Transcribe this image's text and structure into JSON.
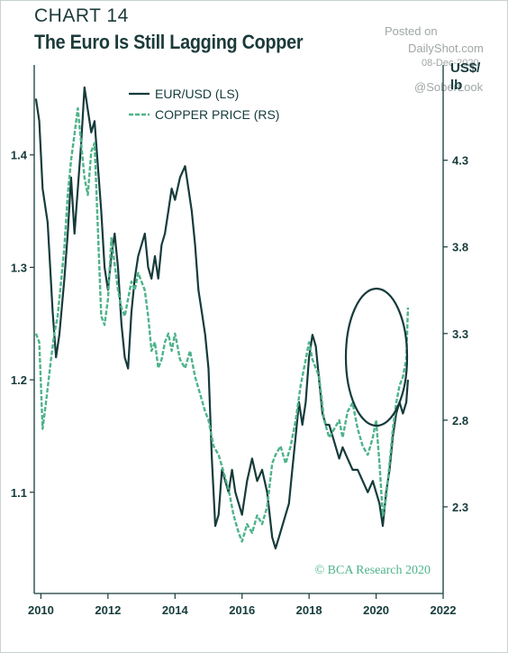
{
  "header": {
    "chart_number": "CHART 14",
    "title": "The Euro Is Still Lagging Copper"
  },
  "watermark": {
    "posted_on": "Posted on",
    "site": "DailyShot.com",
    "date": "08-Dec-2020",
    "handle": "@SoberLook"
  },
  "colors": {
    "eurusd": "#163b3b",
    "copper": "#4db38a",
    "axis": "#163b3b",
    "annotation": "#163b3b"
  },
  "chart_data": {
    "type": "line",
    "title": "The Euro Is Still Lagging Copper",
    "source": "© BCA Research 2020",
    "x_axis": {
      "ticks": [
        "2010",
        "2012",
        "2014",
        "2016",
        "2018",
        "2020",
        "2022"
      ],
      "range": [
        2009.8,
        2022
      ]
    },
    "left_axis": {
      "label": "",
      "ticks": [
        "1.1",
        "1.2",
        "1.3",
        "1.4"
      ],
      "range": [
        1.01,
        1.48
      ]
    },
    "right_axis": {
      "label": "US$/ lb",
      "ticks": [
        "2.3",
        "2.8",
        "3.3",
        "3.8",
        "4.3"
      ],
      "range": [
        1.8,
        4.85
      ]
    },
    "legend": {
      "placement": "top-left",
      "entries": [
        "EUR/USD (LS)",
        "COPPER PRICE (RS)"
      ]
    },
    "annotation": "ellipse around late 2020 values",
    "series": [
      {
        "name": "EUR/USD (LS)",
        "axis": "left",
        "style": "solid",
        "x": [
          2009.85,
          2009.95,
          2010.05,
          2010.2,
          2010.35,
          2010.45,
          2010.55,
          2010.7,
          2010.8,
          2010.9,
          2011.0,
          2011.1,
          2011.2,
          2011.3,
          2011.4,
          2011.5,
          2011.6,
          2011.7,
          2011.8,
          2011.9,
          2012.0,
          2012.1,
          2012.2,
          2012.3,
          2012.4,
          2012.5,
          2012.6,
          2012.7,
          2012.8,
          2012.9,
          2013.0,
          2013.1,
          2013.2,
          2013.3,
          2013.4,
          2013.5,
          2013.6,
          2013.7,
          2013.8,
          2013.9,
          2014.0,
          2014.15,
          2014.3,
          2014.4,
          2014.5,
          2014.6,
          2014.7,
          2014.8,
          2014.9,
          2015.0,
          2015.1,
          2015.2,
          2015.3,
          2015.4,
          2015.5,
          2015.6,
          2015.7,
          2015.8,
          2015.9,
          2016.0,
          2016.15,
          2016.3,
          2016.45,
          2016.6,
          2016.75,
          2016.9,
          2017.0,
          2017.1,
          2017.2,
          2017.3,
          2017.4,
          2017.5,
          2017.6,
          2017.7,
          2017.8,
          2017.9,
          2018.0,
          2018.1,
          2018.2,
          2018.3,
          2018.4,
          2018.5,
          2018.6,
          2018.7,
          2018.8,
          2018.9,
          2019.0,
          2019.15,
          2019.3,
          2019.45,
          2019.6,
          2019.75,
          2019.9,
          2020.0,
          2020.1,
          2020.2,
          2020.3,
          2020.4,
          2020.5,
          2020.6,
          2020.7,
          2020.8,
          2020.9,
          2020.95
        ],
        "y": [
          1.45,
          1.43,
          1.37,
          1.34,
          1.26,
          1.22,
          1.24,
          1.29,
          1.33,
          1.38,
          1.33,
          1.37,
          1.41,
          1.46,
          1.44,
          1.42,
          1.43,
          1.39,
          1.35,
          1.3,
          1.28,
          1.31,
          1.33,
          1.3,
          1.25,
          1.22,
          1.21,
          1.26,
          1.29,
          1.31,
          1.32,
          1.33,
          1.3,
          1.29,
          1.31,
          1.29,
          1.32,
          1.33,
          1.35,
          1.37,
          1.36,
          1.38,
          1.39,
          1.37,
          1.35,
          1.32,
          1.28,
          1.26,
          1.24,
          1.21,
          1.13,
          1.07,
          1.08,
          1.12,
          1.11,
          1.1,
          1.12,
          1.1,
          1.09,
          1.08,
          1.11,
          1.13,
          1.11,
          1.12,
          1.1,
          1.06,
          1.05,
          1.06,
          1.07,
          1.08,
          1.09,
          1.12,
          1.15,
          1.18,
          1.16,
          1.18,
          1.22,
          1.24,
          1.23,
          1.2,
          1.17,
          1.16,
          1.16,
          1.15,
          1.14,
          1.13,
          1.14,
          1.13,
          1.12,
          1.12,
          1.11,
          1.1,
          1.11,
          1.1,
          1.09,
          1.07,
          1.1,
          1.12,
          1.15,
          1.17,
          1.18,
          1.17,
          1.18,
          1.2
        ]
      },
      {
        "name": "COPPER PRICE (RS)",
        "axis": "right",
        "style": "dashed",
        "x": [
          2009.85,
          2009.95,
          2010.05,
          2010.15,
          2010.3,
          2010.4,
          2010.5,
          2010.6,
          2010.7,
          2010.8,
          2010.9,
          2011.0,
          2011.1,
          2011.2,
          2011.3,
          2011.4,
          2011.5,
          2011.6,
          2011.7,
          2011.8,
          2011.9,
          2012.0,
          2012.1,
          2012.2,
          2012.3,
          2012.4,
          2012.5,
          2012.6,
          2012.7,
          2012.8,
          2012.9,
          2013.0,
          2013.1,
          2013.2,
          2013.3,
          2013.4,
          2013.5,
          2013.6,
          2013.7,
          2013.8,
          2013.9,
          2014.0,
          2014.15,
          2014.3,
          2014.45,
          2014.6,
          2014.75,
          2014.9,
          2015.0,
          2015.15,
          2015.3,
          2015.45,
          2015.6,
          2015.75,
          2015.9,
          2016.0,
          2016.15,
          2016.3,
          2016.45,
          2016.6,
          2016.75,
          2016.9,
          2017.0,
          2017.15,
          2017.3,
          2017.45,
          2017.6,
          2017.75,
          2017.9,
          2018.0,
          2018.1,
          2018.2,
          2018.3,
          2018.45,
          2018.6,
          2018.75,
          2018.9,
          2019.0,
          2019.15,
          2019.3,
          2019.45,
          2019.6,
          2019.75,
          2019.9,
          2020.0,
          2020.1,
          2020.2,
          2020.3,
          2020.4,
          2020.5,
          2020.6,
          2020.7,
          2020.8,
          2020.9,
          2020.95
        ],
        "y": [
          3.3,
          3.25,
          2.75,
          2.9,
          3.15,
          3.3,
          3.4,
          3.6,
          3.8,
          4.1,
          4.3,
          4.45,
          4.6,
          4.4,
          4.2,
          4.1,
          4.35,
          4.4,
          3.9,
          3.4,
          3.35,
          3.5,
          3.85,
          3.7,
          3.55,
          3.45,
          3.4,
          3.5,
          3.6,
          3.55,
          3.65,
          3.6,
          3.55,
          3.4,
          3.2,
          3.25,
          3.1,
          3.15,
          3.25,
          3.3,
          3.2,
          3.3,
          3.15,
          3.1,
          3.2,
          3.05,
          2.95,
          2.85,
          2.8,
          2.65,
          2.6,
          2.5,
          2.4,
          2.25,
          2.15,
          2.1,
          2.2,
          2.15,
          2.25,
          2.2,
          2.3,
          2.55,
          2.6,
          2.65,
          2.55,
          2.65,
          2.8,
          3.0,
          3.15,
          3.25,
          3.15,
          3.1,
          3.05,
          2.8,
          2.7,
          2.75,
          2.8,
          2.7,
          2.85,
          2.9,
          2.75,
          2.65,
          2.6,
          2.7,
          2.8,
          2.55,
          2.25,
          2.35,
          2.55,
          2.75,
          2.9,
          3.0,
          3.05,
          3.15,
          3.45
        ]
      }
    ]
  }
}
